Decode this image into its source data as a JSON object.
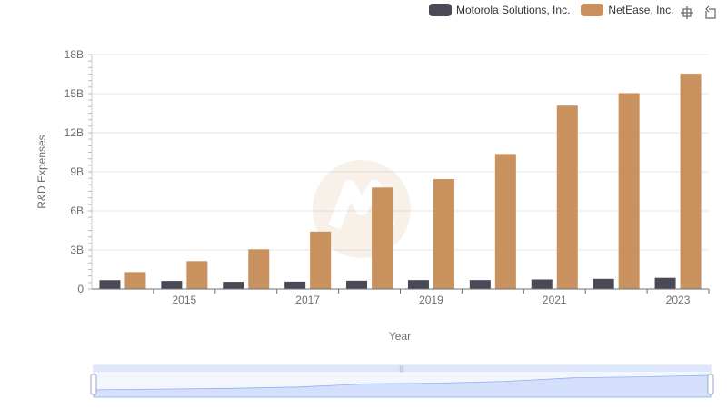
{
  "legend": {
    "series_a": "Motorola Solutions, Inc.",
    "series_b": "NetEase, Inc."
  },
  "toolbox": {
    "zoom_icon": "zoom-icon",
    "restore_icon": "restore-icon"
  },
  "colors": {
    "series_a": "#4a4a56",
    "series_b": "#c8915e",
    "grid": "#e6e6e6",
    "zoom_fill": "#d4e0fb",
    "zoom_line": "#8fb0f7"
  },
  "chart_data": {
    "type": "bar",
    "title": "",
    "xlabel": "Year",
    "ylabel": "R&D Expenses",
    "categories": [
      "2014",
      "2015",
      "2016",
      "2017",
      "2018",
      "2019",
      "2020",
      "2021",
      "2022",
      "2023"
    ],
    "x_tick_labels": [
      "2015",
      "2017",
      "2019",
      "2021",
      "2023"
    ],
    "y_tick_labels": [
      "0",
      "3B",
      "6B",
      "9B",
      "12B",
      "15B",
      "18B"
    ],
    "ylim": [
      0,
      18000000000
    ],
    "series": [
      {
        "name": "Motorola Solutions, Inc.",
        "values": [
          681000000,
          620000000,
          553000000,
          568000000,
          637000000,
          687000000,
          686000000,
          734000000,
          780000000,
          858000000
        ]
      },
      {
        "name": "NetEase, Inc.",
        "values": [
          1300000000,
          2140000000,
          3050000000,
          4410000000,
          7790000000,
          8440000000,
          10370000000,
          14080000000,
          15040000000,
          16530000000
        ]
      }
    ]
  }
}
